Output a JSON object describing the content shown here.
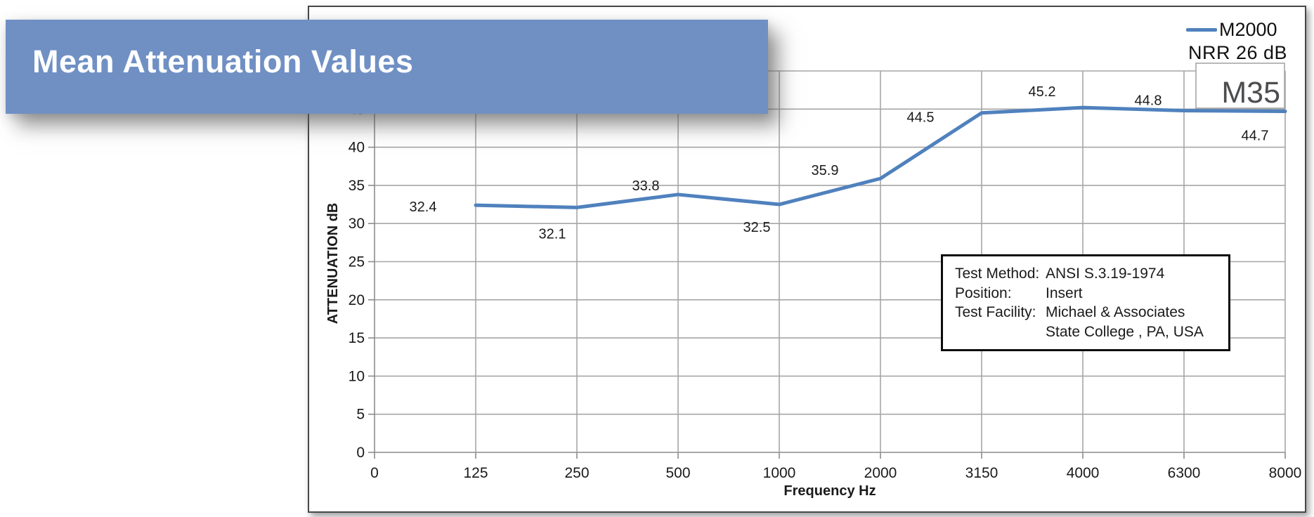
{
  "banner": {
    "title": "Mean Attenuation Values"
  },
  "legend": {
    "series_label": "M2000",
    "nrr_label": "NRR 26 dB"
  },
  "m35": {
    "label": "M35"
  },
  "info_box": {
    "rows": [
      {
        "label": "Test Method:",
        "value": "ANSI S.3.19-1974"
      },
      {
        "label": "Position:",
        "value": "Insert"
      },
      {
        "label": "Test Facility:",
        "value": "Michael & Associates"
      },
      {
        "label": "",
        "value": "State College , PA, USA"
      }
    ]
  },
  "colors": {
    "banner_bg": "#7090c4",
    "banner_text": "#ffffff",
    "line": "#4f81bd",
    "grid": "#a6a6a6",
    "axis": "#8c8c8c",
    "frame_border": "#47484a",
    "text": "#1a1a1a",
    "m35_text": "#4c4d4f",
    "m35_border": "#a6a6a6"
  },
  "chart_data": {
    "type": "line",
    "title": "Mean Attenuation Values",
    "categories": [
      "0",
      "125",
      "250",
      "500",
      "1000",
      "2000",
      "3150",
      "4000",
      "6300",
      "8000"
    ],
    "series": [
      {
        "name": "M2000",
        "color": "#4f81bd",
        "points": [
          {
            "x": "125",
            "y": 32.4,
            "label": "32.4",
            "label_dx": -75,
            "label_dy": 2
          },
          {
            "x": "250",
            "y": 32.1,
            "label": "32.1",
            "label_dx": -35,
            "label_dy": 37
          },
          {
            "x": "500",
            "y": 33.8,
            "label": "33.8",
            "label_dx": -46,
            "label_dy": -13
          },
          {
            "x": "1000",
            "y": 32.5,
            "label": "32.5",
            "label_dx": -32,
            "label_dy": 32
          },
          {
            "x": "2000",
            "y": 35.9,
            "label": "35.9",
            "label_dx": -79,
            "label_dy": -12
          },
          {
            "x": "3150",
            "y": 44.5,
            "label": "44.5",
            "label_dx": -87,
            "label_dy": 6
          },
          {
            "x": "4000",
            "y": 45.2,
            "label": "45.2",
            "label_dx": -58,
            "label_dy": -23
          },
          {
            "x": "6300",
            "y": 44.8,
            "label": "44.8",
            "label_dx": -51,
            "label_dy": -15
          },
          {
            "x": "8000",
            "y": 44.7,
            "label": "44.7",
            "label_dx": -43,
            "label_dy": 34
          }
        ]
      }
    ],
    "xlabel": "Frequency Hz",
    "ylabel": "ATTENUATION dB",
    "ylim": [
      0,
      50
    ],
    "ytick_step": 5,
    "grid": true,
    "legend_position": "top-right",
    "annotations": [
      "M35",
      "NRR 26 dB"
    ]
  }
}
